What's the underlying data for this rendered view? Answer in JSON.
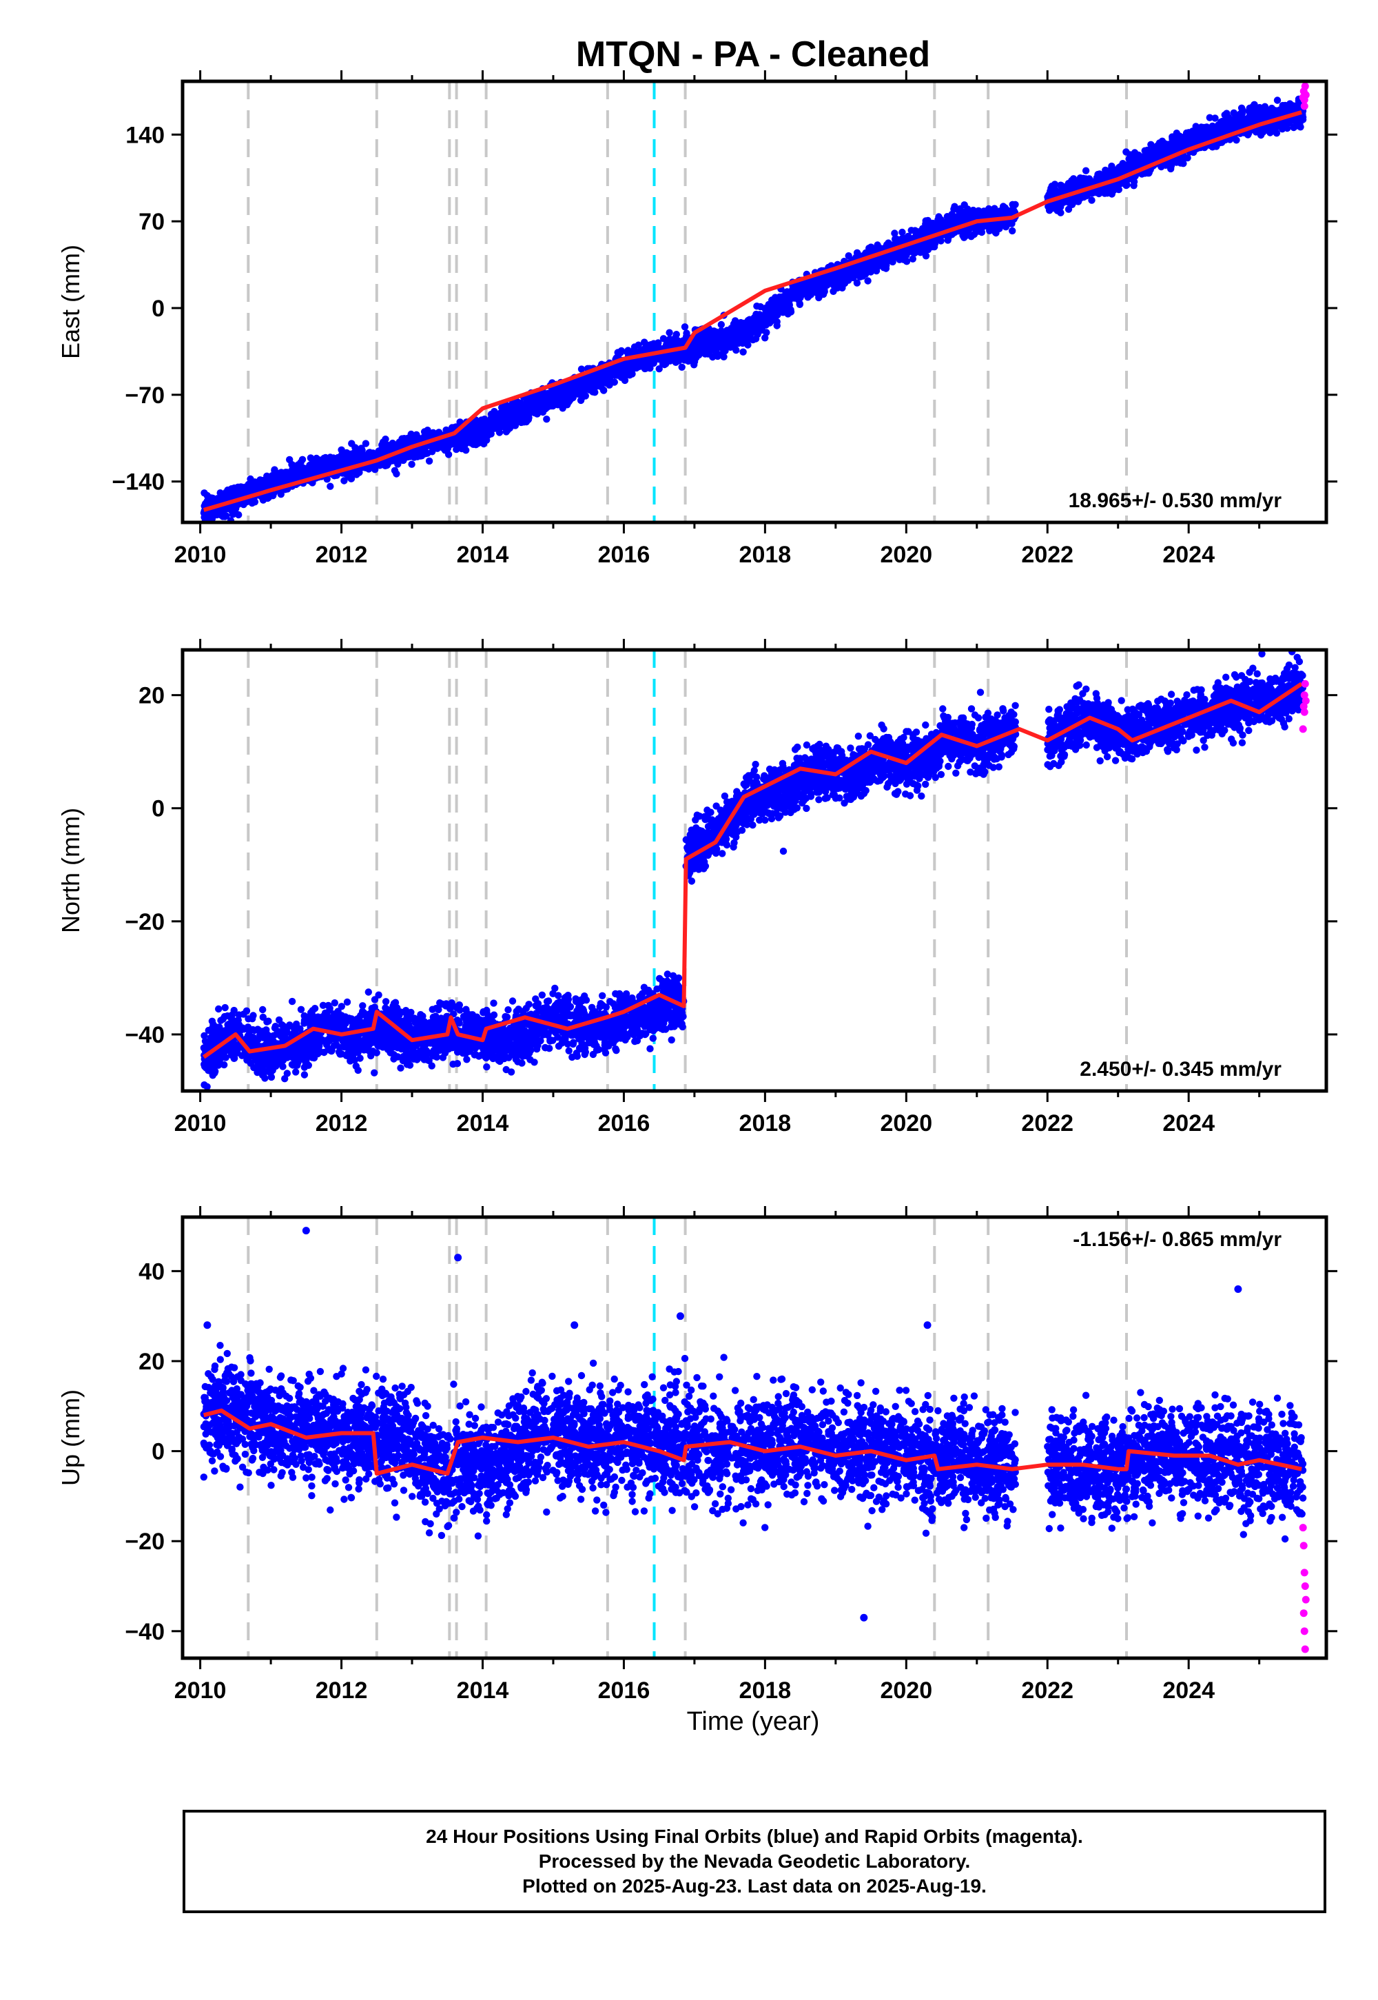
{
  "title": "MTQN  - PA - Cleaned",
  "x_axis_label": "Time (year)",
  "colors": {
    "final_orbits": "#0000ff",
    "rapid_orbits": "#ff00ff",
    "model": "#ff2020",
    "gridline": "#c8c8c8",
    "event_line": "#00e5ff",
    "frame": "#000000"
  },
  "footer": {
    "line1": "24 Hour Positions Using Final Orbits (blue) and Rapid Orbits (magenta).",
    "line2": "Processed by the Nevada Geodetic Laboratory.",
    "line3": "Plotted on 2025-Aug-23. Last data on 2025-Aug-19."
  },
  "chart_data": [
    {
      "type": "scatter",
      "name": "east",
      "ylabel": "East (mm)",
      "rate_label": "18.965+/- 0.530 mm/yr",
      "xlim": [
        2009.75,
        2025.95
      ],
      "ylim": [
        -173,
        183
      ],
      "xticks": [
        2010,
        2012,
        2014,
        2016,
        2018,
        2020,
        2022,
        2024
      ],
      "yticks": [
        -140,
        -70,
        0,
        70,
        140
      ],
      "vlines_grey": [
        2010.68,
        2012.5,
        2013.53,
        2013.63,
        2014.05,
        2015.77,
        2016.87,
        2020.4,
        2021.16,
        2023.12
      ],
      "vline_cyan": 2016.43,
      "model": {
        "x": [
          2010.05,
          2011,
          2012,
          2012.5,
          2013,
          2013.6,
          2014,
          2015,
          2016,
          2016.87,
          2017,
          2018,
          2019,
          2020,
          2021,
          2021.5,
          2022,
          2023,
          2024,
          2025,
          2025.6
        ],
        "y": [
          -163,
          -147,
          -131,
          -123,
          -112,
          -101,
          -81,
          -62,
          -41,
          -32,
          -20,
          14,
          32,
          51,
          70,
          73,
          86,
          104,
          128,
          148,
          158
        ]
      },
      "scatter_series": [
        {
          "start": 2010.05,
          "end": 2021.55,
          "values": [
            -163,
            -147,
            -131,
            -123,
            -112,
            -101,
            -81,
            -62,
            -41,
            -32,
            -20,
            14,
            32,
            51,
            70,
            73
          ],
          "spread": 5,
          "count": 3800
        },
        {
          "start": 2022.0,
          "end": 2025.62,
          "values": [
            86,
            104,
            128,
            148,
            158
          ],
          "spread": 5,
          "count": 1300
        }
      ],
      "rapid_points": {
        "x": [
          2025.62,
          2025.63,
          2025.64,
          2025.64,
          2025.65,
          2025.66
        ],
        "y": [
          170,
          175,
          163,
          168,
          179,
          172
        ]
      }
    },
    {
      "type": "scatter",
      "name": "north",
      "ylabel": "North (mm)",
      "rate_label": "2.450+/- 0.345 mm/yr",
      "xlim": [
        2009.75,
        2025.95
      ],
      "ylim": [
        -50,
        28
      ],
      "xticks": [
        2010,
        2012,
        2014,
        2016,
        2018,
        2020,
        2022,
        2024
      ],
      "yticks": [
        -40,
        -20,
        0,
        20
      ],
      "vlines_grey": [
        2010.68,
        2012.5,
        2013.53,
        2013.63,
        2014.05,
        2015.77,
        2016.87,
        2020.4,
        2021.16,
        2023.12
      ],
      "vline_cyan": 2016.43,
      "model": {
        "x": [
          2010.05,
          2010.5,
          2010.7,
          2011.2,
          2011.6,
          2012,
          2012.45,
          2012.5,
          2013,
          2013.5,
          2013.55,
          2013.65,
          2014,
          2014.05,
          2014.6,
          2015.2,
          2015.75,
          2016,
          2016.5,
          2016.85,
          2016.88,
          2017.3,
          2017.7,
          2018.5,
          2019,
          2019.5,
          2020,
          2020.5,
          2021,
          2021.6,
          2022,
          2022.6,
          2023,
          2023.2,
          2023.8,
          2024,
          2024.6,
          2025,
          2025.6
        ],
        "y": [
          -44,
          -40,
          -43,
          -42,
          -39,
          -40,
          -39,
          -36,
          -41,
          -40,
          -37,
          -40,
          -41,
          -39,
          -37,
          -39,
          -37,
          -36,
          -33,
          -35,
          -9,
          -6,
          2,
          7,
          6,
          10,
          8,
          13,
          11,
          14,
          12,
          16,
          14,
          12,
          15,
          16,
          19,
          17,
          22
        ]
      },
      "scatter_series": [
        {
          "start": 2010.05,
          "end": 2016.85,
          "values": [
            -44,
            -40,
            -43,
            -42,
            -39,
            -40,
            -39,
            -41,
            -40,
            -40,
            -41,
            -39,
            -37,
            -39,
            -37,
            -36,
            -34
          ],
          "spread": 2.2,
          "count": 2600
        },
        {
          "start": 2016.88,
          "end": 2021.55,
          "values": [
            -9,
            -4,
            2,
            3,
            7,
            6,
            9,
            8,
            12,
            11,
            14
          ],
          "spread": 2.2,
          "count": 1800
        },
        {
          "start": 2022.0,
          "end": 2025.62,
          "values": [
            12,
            16,
            13,
            15,
            16,
            18,
            19,
            21
          ],
          "spread": 2.2,
          "count": 1300
        }
      ],
      "rapid_points": {
        "x": [
          2025.62,
          2025.63,
          2025.64,
          2025.65,
          2025.66,
          2025.64
        ],
        "y": [
          14,
          18,
          20,
          22,
          19,
          17
        ]
      }
    },
    {
      "type": "scatter",
      "name": "up",
      "ylabel": "Up (mm)",
      "rate_label": "-1.156+/- 0.865 mm/yr",
      "xlim": [
        2009.75,
        2025.95
      ],
      "ylim": [
        -46,
        52
      ],
      "xticks": [
        2010,
        2012,
        2014,
        2016,
        2018,
        2020,
        2022,
        2024
      ],
      "yticks": [
        -40,
        -20,
        0,
        20,
        40
      ],
      "vlines_grey": [
        2010.68,
        2012.5,
        2013.53,
        2013.63,
        2014.05,
        2015.77,
        2016.87,
        2020.4,
        2021.16,
        2023.12
      ],
      "vline_cyan": 2016.43,
      "model": {
        "x": [
          2010.05,
          2010.3,
          2010.7,
          2011,
          2011.5,
          2012,
          2012.45,
          2012.5,
          2013,
          2013.5,
          2013.65,
          2014,
          2014.5,
          2015,
          2015.5,
          2016,
          2016.5,
          2016.85,
          2016.88,
          2017.5,
          2018,
          2018.5,
          2019,
          2019.5,
          2020,
          2020.4,
          2020.45,
          2021,
          2021.5,
          2022,
          2022.5,
          2023,
          2023.12,
          2023.15,
          2023.8,
          2024.3,
          2024.7,
          2025,
          2025.6
        ],
        "y": [
          8,
          9,
          5,
          6,
          3,
          4,
          4,
          -5,
          -3,
          -5,
          2,
          3,
          2,
          3,
          1,
          2,
          0,
          -2,
          1,
          2,
          0,
          1,
          -1,
          0,
          -2,
          -1,
          -4,
          -3,
          -4,
          -3,
          -3,
          -4,
          -4,
          0,
          -1,
          -1,
          -3,
          -2,
          -4
        ]
      },
      "scatter_series": [
        {
          "start": 2010.05,
          "end": 2021.55,
          "values": [
            8,
            9,
            6,
            5,
            4,
            3,
            4,
            -4,
            -3,
            -5,
            3,
            3,
            2,
            2,
            1,
            1,
            0,
            1,
            2,
            1,
            0,
            0,
            -1,
            -2,
            -3,
            -3
          ],
          "spread": 5.5,
          "count": 4200
        },
        {
          "start": 2022.0,
          "end": 2025.62,
          "values": [
            -3,
            -3,
            -4,
            -1,
            -1,
            -2,
            -3,
            -4
          ],
          "spread": 5.5,
          "count": 1300
        }
      ],
      "outliers": {
        "x": [
          2011.5,
          2013.65,
          2015.3,
          2016.8,
          2019.4,
          2020.3,
          2024.7,
          2010.1
        ],
        "y": [
          49,
          43,
          28,
          30,
          -37,
          28,
          36,
          28
        ]
      },
      "rapid_points": {
        "x": [
          2025.62,
          2025.63,
          2025.64,
          2025.65,
          2025.66,
          2025.63,
          2025.64,
          2025.65
        ],
        "y": [
          -17,
          -21,
          -27,
          -30,
          -33,
          -36,
          -40,
          -44
        ]
      }
    }
  ]
}
